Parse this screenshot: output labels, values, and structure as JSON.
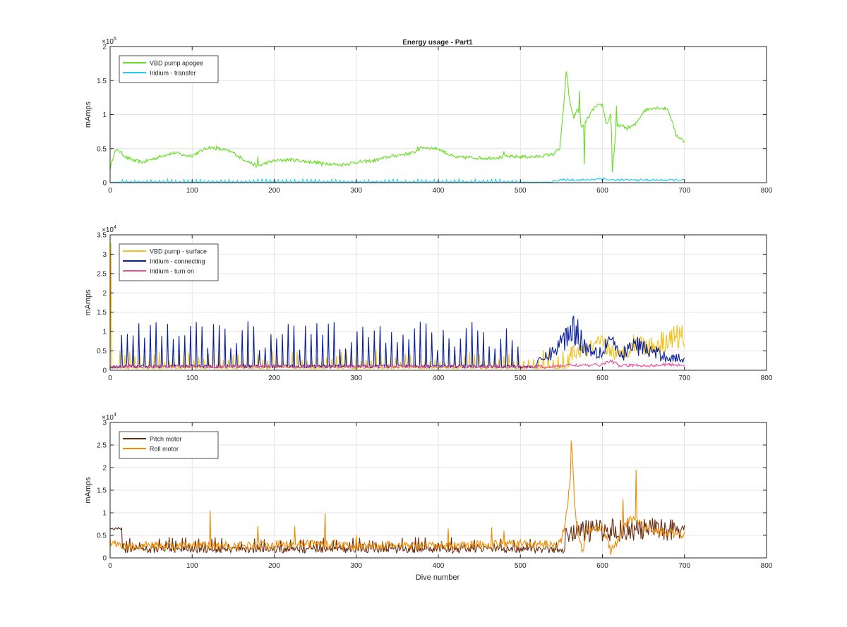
{
  "figure": {
    "title": "Energy usage - Part1",
    "xlabel": "Dive number"
  },
  "chart_data": [
    {
      "type": "line",
      "title": "Energy usage - Part1",
      "xlabel": "",
      "ylabel": "mAmps",
      "xlim": [
        0,
        800
      ],
      "ylim": [
        0,
        2000000
      ],
      "xticks": [
        0,
        100,
        200,
        300,
        400,
        500,
        600,
        700,
        800
      ],
      "yticks": [
        0,
        500000,
        1000000,
        1500000,
        2000000
      ],
      "ytick_labels": [
        "0",
        "0.5",
        "1",
        "1.5",
        "2"
      ],
      "exponent": "6",
      "grid": true,
      "legend_position": "top-left",
      "series": [
        {
          "name": "VBD pump apogee",
          "color": "#66dd22",
          "mode": "level",
          "points": [
            [
              0,
              200000
            ],
            [
              5,
              450000
            ],
            [
              10,
              480000
            ],
            [
              15,
              420000
            ],
            [
              20,
              370000
            ],
            [
              30,
              320000
            ],
            [
              40,
              300000
            ],
            [
              50,
              340000
            ],
            [
              60,
              380000
            ],
            [
              70,
              420000
            ],
            [
              80,
              440000
            ],
            [
              90,
              400000
            ],
            [
              100,
              400000
            ],
            [
              110,
              460000
            ],
            [
              120,
              520000
            ],
            [
              130,
              500000
            ],
            [
              140,
              480000
            ],
            [
              150,
              440000
            ],
            [
              160,
              360000
            ],
            [
              170,
              300000
            ],
            [
              180,
              240000
            ],
            [
              190,
              290000
            ],
            [
              200,
              320000
            ],
            [
              220,
              340000
            ],
            [
              240,
              310000
            ],
            [
              260,
              290000
            ],
            [
              280,
              260000
            ],
            [
              300,
              300000
            ],
            [
              320,
              320000
            ],
            [
              340,
              380000
            ],
            [
              360,
              420000
            ],
            [
              370,
              440000
            ],
            [
              380,
              520000
            ],
            [
              400,
              500000
            ],
            [
              420,
              370000
            ],
            [
              440,
              370000
            ],
            [
              460,
              360000
            ],
            [
              480,
              380000
            ],
            [
              500,
              380000
            ],
            [
              520,
              380000
            ],
            [
              540,
              420000
            ],
            [
              548,
              500000
            ],
            [
              552,
              1000000
            ],
            [
              556,
              1650000
            ],
            [
              560,
              1200000
            ],
            [
              565,
              950000
            ],
            [
              570,
              1100000
            ],
            [
              575,
              800000
            ],
            [
              580,
              900000
            ],
            [
              590,
              1100000
            ],
            [
              600,
              1150000
            ],
            [
              605,
              850000
            ],
            [
              610,
              1000000
            ],
            [
              613,
              300000
            ],
            [
              617,
              800000
            ],
            [
              620,
              850000
            ],
            [
              630,
              800000
            ],
            [
              640,
              850000
            ],
            [
              650,
              1050000
            ],
            [
              660,
              1100000
            ],
            [
              670,
              1100000
            ],
            [
              680,
              1080000
            ],
            [
              690,
              700000
            ],
            [
              700,
              600000
            ]
          ],
          "noise": 25000,
          "spikes": [
            [
              130,
              540000
            ],
            [
              180,
              380000
            ],
            [
              258,
              250000
            ],
            [
              375,
              530000
            ],
            [
              480,
              460000
            ],
            [
              572,
              1350000
            ],
            [
              578,
              270000
            ],
            [
              612,
              150000
            ],
            [
              617,
              1130000
            ]
          ]
        },
        {
          "name": "Iridium - transfer",
          "color": "#22ccee",
          "mode": "pulse",
          "points": [
            [
              0,
              10000
            ],
            [
              700,
              10000
            ]
          ],
          "base": 8000,
          "peak": 45000,
          "period": 5,
          "active": [
            [
              15,
              300
            ],
            [
              300,
              500
            ]
          ],
          "tail": [
            [
              540,
              35000
            ],
            [
              560,
              45000
            ],
            [
              580,
              40000
            ],
            [
              600,
              65000
            ],
            [
              610,
              40000
            ],
            [
              700,
              40000
            ]
          ]
        }
      ]
    },
    {
      "type": "line",
      "xlabel": "",
      "ylabel": "mAmps",
      "xlim": [
        0,
        800
      ],
      "ylim": [
        0,
        35000
      ],
      "xticks": [
        0,
        100,
        200,
        300,
        400,
        500,
        600,
        700,
        800
      ],
      "yticks": [
        0,
        5000,
        10000,
        15000,
        20000,
        25000,
        30000,
        35000
      ],
      "ytick_labels": [
        "0",
        "0.5",
        "1",
        "1.5",
        "2",
        "2.5",
        "3",
        "3.5"
      ],
      "exponent": "4",
      "grid": true,
      "legend_position": "top-left",
      "series": [
        {
          "name": "VBD pump - surface",
          "color": "#f2c01a",
          "mode": "pulse",
          "base": 600,
          "peak": 4500,
          "period": 6,
          "start_spike": 33000,
          "active": [
            [
              10,
              560
            ]
          ],
          "tail": [
            [
              560,
              4500
            ],
            [
              580,
              5500
            ],
            [
              600,
              7000
            ],
            [
              620,
              4000
            ],
            [
              640,
              7500
            ],
            [
              660,
              6500
            ],
            [
              680,
              8500
            ],
            [
              700,
              9500
            ]
          ]
        },
        {
          "name": "Iridium - connecting",
          "color": "#0a1f9a",
          "mode": "pulse",
          "base": 1000,
          "peak": 11000,
          "period": 7,
          "active": [
            [
              12,
              500
            ]
          ],
          "tail": [
            [
              520,
              2000
            ],
            [
              540,
              5000
            ],
            [
              555,
              9000
            ],
            [
              565,
              12000
            ],
            [
              580,
              6000
            ],
            [
              600,
              5000
            ],
            [
              610,
              9500
            ],
            [
              620,
              3500
            ],
            [
              640,
              7000
            ],
            [
              660,
              5000
            ],
            [
              680,
              3500
            ],
            [
              700,
              3000
            ]
          ]
        },
        {
          "name": "Iridium - turn on",
          "color": "#e8509a",
          "mode": "level",
          "points": [
            [
              0,
              800
            ],
            [
              10,
              1000
            ],
            [
              200,
              1000
            ],
            [
              400,
              1000
            ],
            [
              540,
              900
            ],
            [
              560,
              1400
            ],
            [
              580,
              1200
            ],
            [
              600,
              1500
            ],
            [
              610,
              2500
            ],
            [
              620,
              1200
            ],
            [
              640,
              1300
            ],
            [
              660,
              1200
            ],
            [
              680,
              1500
            ],
            [
              700,
              1300
            ]
          ],
          "noise": 400,
          "spikes": []
        }
      ]
    },
    {
      "type": "line",
      "xlabel": "Dive number",
      "ylabel": "mAmps",
      "xlim": [
        0,
        800
      ],
      "ylim": [
        0,
        30000
      ],
      "xticks": [
        0,
        100,
        200,
        300,
        400,
        500,
        600,
        700,
        800
      ],
      "yticks": [
        0,
        5000,
        10000,
        15000,
        20000,
        25000,
        30000
      ],
      "ytick_labels": [
        "0",
        "0.5",
        "1",
        "1.5",
        "2",
        "2.5",
        "3"
      ],
      "exponent": "4",
      "grid": true,
      "legend_position": "top-left",
      "series": [
        {
          "name": "Pitch motor",
          "color": "#6b2f10",
          "mode": "pulse",
          "base": 1800,
          "peak": 4000,
          "period": 4,
          "start_level": 6500,
          "active": [
            [
              15,
              550
            ]
          ],
          "tail": [
            [
              555,
              6000
            ],
            [
              600,
              6500
            ],
            [
              650,
              6500
            ],
            [
              700,
              7000
            ]
          ]
        },
        {
          "name": "Roll motor",
          "color": "#f08c00",
          "mode": "level",
          "points": [
            [
              0,
              3500
            ],
            [
              10,
              3000
            ],
            [
              20,
              2500
            ],
            [
              40,
              2800
            ],
            [
              80,
              2600
            ],
            [
              120,
              2800
            ],
            [
              160,
              2700
            ],
            [
              200,
              3000
            ],
            [
              240,
              3200
            ],
            [
              280,
              3000
            ],
            [
              300,
              2500
            ],
            [
              340,
              2800
            ],
            [
              380,
              2600
            ],
            [
              420,
              2800
            ],
            [
              460,
              3000
            ],
            [
              500,
              3200
            ],
            [
              540,
              3000
            ],
            [
              550,
              4000
            ],
            [
              555,
              8000
            ],
            [
              560,
              16000
            ],
            [
              563,
              24000
            ],
            [
              566,
              12000
            ],
            [
              570,
              5000
            ],
            [
              576,
              1000
            ],
            [
              580,
              6000
            ],
            [
              590,
              6500
            ],
            [
              600,
              7000
            ],
            [
              610,
              1500
            ],
            [
              620,
              4000
            ],
            [
              630,
              8000
            ],
            [
              640,
              9000
            ],
            [
              650,
              7000
            ],
            [
              660,
              6000
            ],
            [
              680,
              5500
            ],
            [
              700,
              5000
            ]
          ],
          "noise": 900,
          "spikes": [
            [
              122,
              10500
            ],
            [
              180,
              7000
            ],
            [
              225,
              7000
            ],
            [
              262,
              10000
            ],
            [
              300,
              5000
            ],
            [
              412,
              6500
            ],
            [
              465,
              6800
            ],
            [
              480,
              6000
            ],
            [
              562,
              26000
            ],
            [
              625,
              13000
            ],
            [
              641,
              19500
            ]
          ]
        }
      ]
    }
  ]
}
